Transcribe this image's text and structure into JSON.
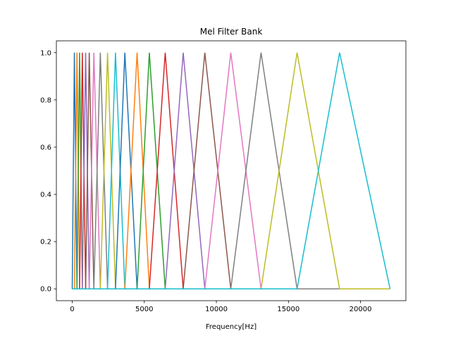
{
  "chart_data": {
    "type": "line",
    "title": "Mel Filter Bank",
    "xlabel": "Frequency[Hz]",
    "ylabel": "",
    "xlim": [
      -1100,
      23150
    ],
    "ylim": [
      -0.05,
      1.05
    ],
    "x_ticks": [
      0,
      5000,
      10000,
      15000,
      20000
    ],
    "x_tick_labels": [
      "0",
      "5000",
      "10000",
      "15000",
      "20000"
    ],
    "y_ticks": [
      0.0,
      0.2,
      0.4,
      0.6,
      0.8,
      1.0
    ],
    "y_tick_labels": [
      "0.0",
      "0.2",
      "0.4",
      "0.6",
      "0.8",
      "1.0"
    ],
    "grid": false,
    "x_max": 22050,
    "filter_points": [
      0,
      150,
      330,
      510,
      700,
      930,
      1180,
      1500,
      1950,
      2450,
      3000,
      3650,
      4500,
      5350,
      6450,
      7700,
      9200,
      11000,
      13100,
      15600,
      18550,
      22050
    ],
    "colors": [
      "#1f77b4",
      "#ff7f0e",
      "#2ca02c",
      "#d62728",
      "#9467bd",
      "#8c564b",
      "#e377c2",
      "#7f7f7f",
      "#bcbd22",
      "#17becf"
    ]
  }
}
